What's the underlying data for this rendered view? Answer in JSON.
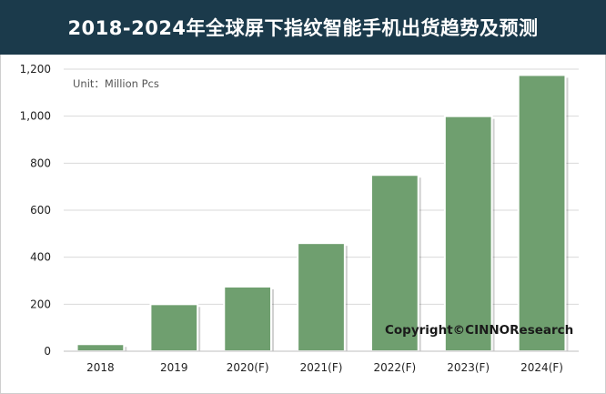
{
  "header": {
    "title": "2018-2024年全球屏下指纹智能手机出货趋势及预测"
  },
  "chart_data": {
    "type": "bar",
    "title": "2018-2024年全球屏下指纹智能手机出货趋势及预测",
    "unit_note": "Unit：Million Pcs",
    "categories": [
      "2018",
      "2019",
      "2020(F)",
      "2021(F)",
      "2022(F)",
      "2023(F)",
      "2024(F)"
    ],
    "values": [
      30,
      200,
      275,
      460,
      750,
      1000,
      1175
    ],
    "ylim": [
      0,
      1200
    ],
    "yticks": [
      0,
      200,
      400,
      600,
      800,
      1000,
      1200
    ],
    "ytick_labels": [
      "0",
      "200",
      "400",
      "600",
      "800",
      "1,000",
      "1,200"
    ],
    "grid": true,
    "legend": "none",
    "colors": {
      "bar": "#6f9f6f",
      "header_bg": "#1b3a4b"
    },
    "annotation": "Copyright©CINNOResearch"
  }
}
